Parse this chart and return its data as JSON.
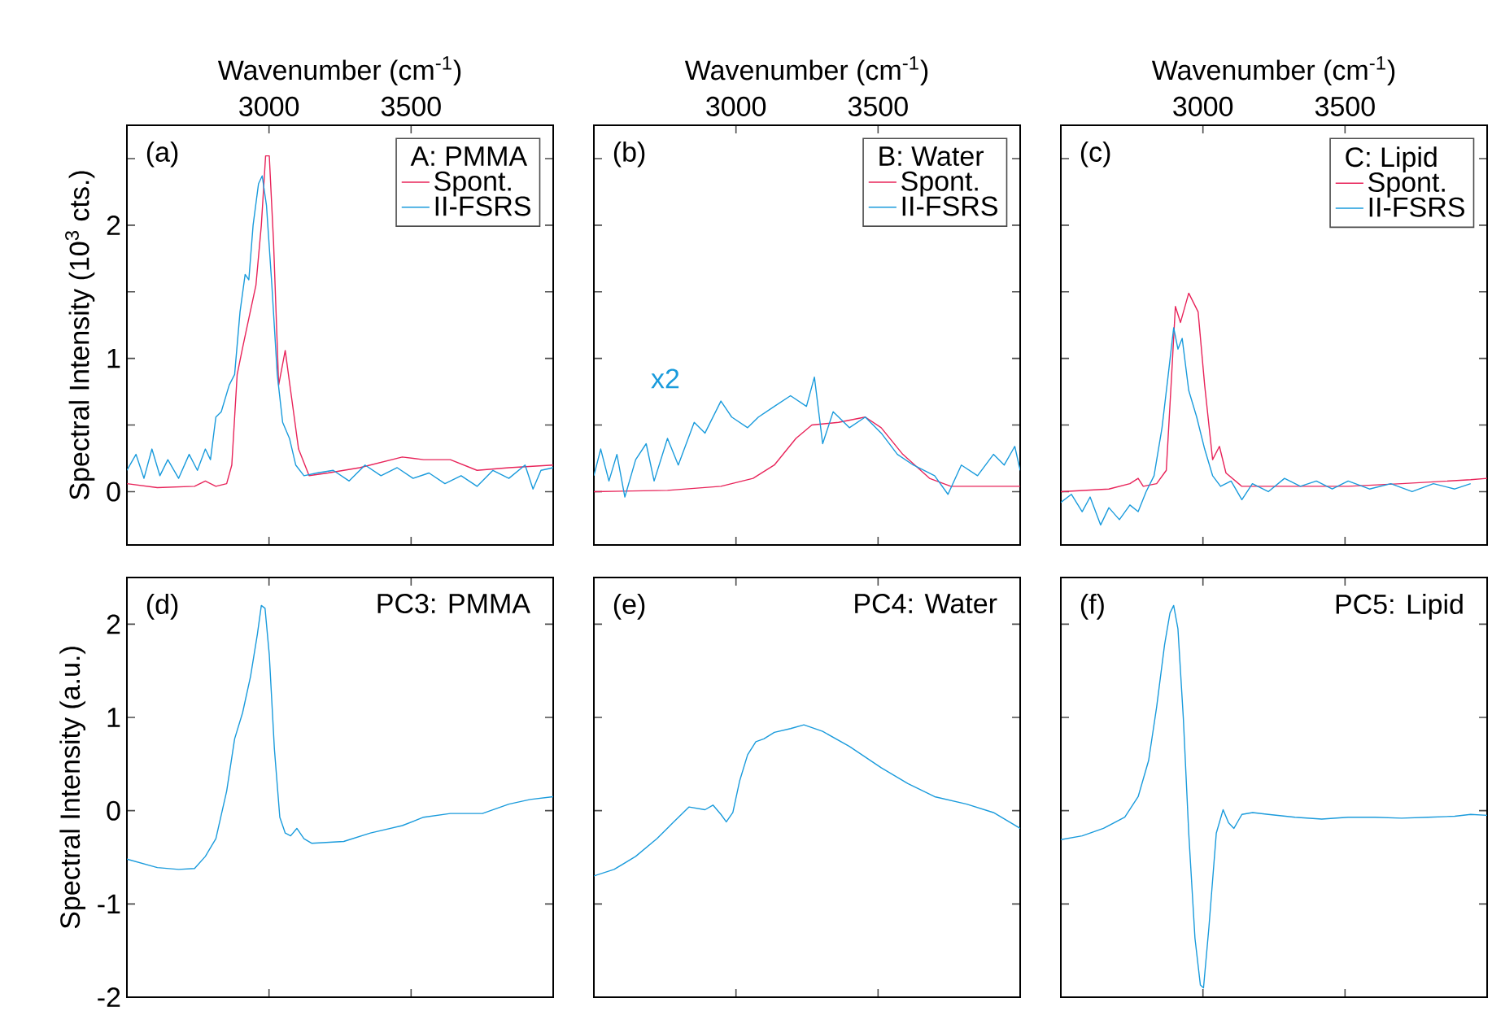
{
  "chart_data": [
    {
      "type": "line",
      "xlabel": "Wavenumber (cm$^{-1}$)",
      "ylabel": "Spectral Intensity (10$^{3}$ cts.)",
      "legend_title": "A: PMMA",
      "legend": "top right",
      "annotations": [
        "(a)"
      ],
      "xlim": [
        2500,
        4000
      ],
      "xticks": [
        3000,
        3500
      ],
      "ylim": [
        -0.4,
        2.75
      ],
      "yticks": [
        0,
        {
          "value": 0.5,
          "label": null
        },
        1,
        {
          "value": 1.5,
          "label": null
        },
        2,
        {
          "value": 2.5,
          "label": null
        }
      ],
      "series": [
        {
          "name": "Spont.",
          "color": "#e8245a",
          "x": [
            2500,
            2607,
            2738,
            2776,
            2813,
            2851,
            2869,
            2888,
            2907,
            2926,
            2954,
            2973,
            2988,
            3001,
            3016,
            3034,
            3057,
            3076,
            3104,
            3141,
            3207,
            3319,
            3469,
            3544,
            3638,
            3732,
            3844,
            4000
          ],
          "values": [
            0.06,
            0.03,
            0.04,
            0.08,
            0.04,
            0.06,
            0.2,
            0.88,
            1.08,
            1.27,
            1.55,
            2.0,
            2.52,
            2.52,
            1.87,
            0.8,
            1.06,
            0.76,
            0.32,
            0.12,
            0.14,
            0.18,
            0.26,
            0.24,
            0.24,
            0.16,
            0.18,
            0.2
          ]
        },
        {
          "name": "II-FSRS",
          "color": "#1a9bdc",
          "x": [
            2500,
            2532,
            2560,
            2588,
            2616,
            2644,
            2682,
            2719,
            2748,
            2776,
            2794,
            2813,
            2832,
            2860,
            2879,
            2898,
            2916,
            2929,
            2944,
            2963,
            2976,
            2991,
            3010,
            3029,
            3048,
            3072,
            3094,
            3123,
            3169,
            3226,
            3282,
            3338,
            3394,
            3451,
            3507,
            3563,
            3619,
            3676,
            3732,
            3788,
            3844,
            3901,
            3929,
            3957,
            4000
          ],
          "values": [
            0.16,
            0.28,
            0.1,
            0.32,
            0.12,
            0.24,
            0.1,
            0.28,
            0.16,
            0.32,
            0.24,
            0.56,
            0.6,
            0.8,
            0.88,
            1.35,
            1.63,
            1.59,
            2.0,
            2.31,
            2.37,
            2.15,
            1.55,
            0.88,
            0.52,
            0.4,
            0.2,
            0.12,
            0.14,
            0.16,
            0.08,
            0.2,
            0.12,
            0.18,
            0.1,
            0.14,
            0.06,
            0.12,
            0.04,
            0.16,
            0.1,
            0.2,
            0.02,
            0.16,
            0.18
          ]
        }
      ]
    },
    {
      "type": "line",
      "xlabel": "Wavenumber (cm$^{-1}$)",
      "legend_title": "B: Water",
      "legend": "top right",
      "annotations": [
        "(b)",
        "x2"
      ],
      "tick_labels": "x",
      "xlim": [
        2500,
        4000
      ],
      "xticks": [
        3000,
        3500
      ],
      "ylim": [
        -0.4,
        2.75
      ],
      "yticks": [
        0,
        {
          "value": 0.5,
          "label": null
        },
        1,
        {
          "value": 1.5,
          "label": null
        },
        2,
        {
          "value": 2.5,
          "label": null
        }
      ],
      "series": [
        {
          "name": "Spont.",
          "color": "#e8245a",
          "x": [
            2500,
            2759,
            2947,
            3060,
            3135,
            3211,
            3267,
            3361,
            3455,
            3511,
            3587,
            3681,
            3756,
            4000
          ],
          "values": [
            0,
            0.01,
            0.04,
            0.1,
            0.2,
            0.4,
            0.5,
            0.52,
            0.56,
            0.48,
            0.28,
            0.1,
            0.04,
            0.04
          ]
        },
        {
          "name": "II-FSRS",
          "color": "#1a9bdc",
          "x": [
            2500,
            2524,
            2553,
            2581,
            2609,
            2647,
            2684,
            2712,
            2759,
            2797,
            2853,
            2891,
            2947,
            2985,
            3041,
            3079,
            3135,
            3192,
            3248,
            3276,
            3305,
            3342,
            3399,
            3455,
            3511,
            3568,
            3624,
            3699,
            3746,
            3793,
            3850,
            3906,
            3944,
            3981,
            4000
          ],
          "values": [
            0.12,
            0.32,
            0.08,
            0.28,
            -0.04,
            0.24,
            0.36,
            0.08,
            0.4,
            0.2,
            0.52,
            0.44,
            0.68,
            0.56,
            0.48,
            0.56,
            0.64,
            0.72,
            0.64,
            0.86,
            0.36,
            0.6,
            0.48,
            0.56,
            0.44,
            0.28,
            0.2,
            0.12,
            -0.02,
            0.2,
            0.12,
            0.28,
            0.2,
            0.34,
            0.16
          ]
        }
      ]
    },
    {
      "type": "line",
      "xlabel": "Wavenumber (cm$^{-1}$)",
      "legend_title": "C: Lipid",
      "legend": "top right",
      "annotations": [
        "(c)"
      ],
      "tick_labels": "x",
      "xlim": [
        2500,
        4000
      ],
      "xticks": [
        3000,
        3500
      ],
      "ylim": [
        -0.4,
        2.75
      ],
      "yticks": [
        0,
        {
          "value": 0.5,
          "label": null
        },
        1,
        {
          "value": 1.5,
          "label": null
        },
        2,
        {
          "value": 2.5,
          "label": null
        }
      ],
      "series": [
        {
          "name": "Spont.",
          "color": "#e8245a",
          "x": [
            2500,
            2669,
            2743,
            2772,
            2790,
            2837,
            2871,
            2890,
            2903,
            2921,
            2950,
            2983,
            3006,
            3034,
            3058,
            3081,
            3137,
            3324,
            3511,
            3699,
            3942,
            4000
          ],
          "values": [
            0,
            0.02,
            0.06,
            0.1,
            0.04,
            0.06,
            0.16,
            0.88,
            1.39,
            1.27,
            1.49,
            1.35,
            0.8,
            0.24,
            0.34,
            0.14,
            0.04,
            0.04,
            0.04,
            0.06,
            0.09,
            0.1
          ]
        },
        {
          "name": "II-FSRS",
          "color": "#1a9bdc",
          "x": [
            2500,
            2537,
            2575,
            2603,
            2640,
            2669,
            2706,
            2743,
            2772,
            2800,
            2828,
            2856,
            2878,
            2897,
            2912,
            2927,
            2950,
            2978,
            3006,
            3034,
            3062,
            3099,
            3137,
            3174,
            3230,
            3287,
            3343,
            3399,
            3455,
            3511,
            3586,
            3661,
            3736,
            3811,
            3886,
            3942
          ],
          "values": [
            -0.08,
            -0.02,
            -0.15,
            -0.04,
            -0.25,
            -0.12,
            -0.21,
            -0.1,
            -0.15,
            0,
            0.12,
            0.48,
            0.88,
            1.23,
            1.07,
            1.15,
            0.76,
            0.56,
            0.32,
            0.12,
            0.04,
            0.08,
            -0.06,
            0.06,
            0,
            0.1,
            0.04,
            0.08,
            0.02,
            0.08,
            0.02,
            0.06,
            0,
            0.06,
            0.02,
            0.06
          ]
        }
      ]
    },
    {
      "type": "line",
      "ylabel": "Spectral Intensity (a.u.)",
      "annotations": [
        "(d)",
        "PC3: PMMA"
      ],
      "tick_labels": "y",
      "xlim": [
        2500,
        4000
      ],
      "xticks": [
        3000,
        3500
      ],
      "ylim": [
        -2,
        2.5
      ],
      "yticks": [
        -2,
        -1,
        0,
        1,
        2
      ],
      "series": [
        {
          "color": "#1a9bdc",
          "x": [
            2500,
            2607,
            2682,
            2738,
            2776,
            2813,
            2851,
            2879,
            2907,
            2935,
            2959,
            2973,
            2986,
            3001,
            3019,
            3038,
            3057,
            3076,
            3098,
            3123,
            3151,
            3263,
            3357,
            3469,
            3544,
            3638,
            3751,
            3844,
            3919,
            4000
          ],
          "values": [
            -0.52,
            -0.61,
            -0.63,
            -0.62,
            -0.49,
            -0.3,
            0.21,
            0.77,
            1.05,
            1.44,
            1.89,
            2.2,
            2.17,
            1.67,
            0.66,
            -0.07,
            -0.24,
            -0.27,
            -0.19,
            -0.3,
            -0.35,
            -0.33,
            -0.24,
            -0.16,
            -0.07,
            -0.03,
            -0.03,
            0.07,
            0.12,
            0.15
          ]
        }
      ]
    },
    {
      "type": "line",
      "annotations": [
        "(e)",
        "PC4: Water"
      ],
      "tick_labels": false,
      "xlim": [
        2500,
        4000
      ],
      "xticks": [
        3000,
        3500
      ],
      "ylim": [
        -2,
        2.5
      ],
      "yticks": [
        -2,
        -1,
        0,
        1,
        2
      ],
      "series": [
        {
          "color": "#1a9bdc",
          "x": [
            2500,
            2571,
            2647,
            2722,
            2778,
            2835,
            2891,
            2919,
            2947,
            2966,
            2989,
            3013,
            3041,
            3070,
            3098,
            3135,
            3192,
            3239,
            3305,
            3399,
            3511,
            3605,
            3699,
            3812,
            3906,
            4000
          ],
          "values": [
            -0.7,
            -0.63,
            -0.49,
            -0.3,
            -0.13,
            0.04,
            0.01,
            0.06,
            -0.04,
            -0.12,
            -0.02,
            0.32,
            0.6,
            0.74,
            0.77,
            0.84,
            0.88,
            0.92,
            0.85,
            0.69,
            0.46,
            0.29,
            0.15,
            0.07,
            -0.02,
            -0.19
          ]
        }
      ]
    },
    {
      "type": "line",
      "annotations": [
        "(f)",
        "PC5: Lipid"
      ],
      "tick_labels": false,
      "xlim": [
        2500,
        4000
      ],
      "xticks": [
        3000,
        3500
      ],
      "ylim": [
        -2,
        2.5
      ],
      "yticks": [
        -2,
        -1,
        0,
        1,
        2
      ],
      "series": [
        {
          "color": "#1a9bdc",
          "x": [
            2500,
            2575,
            2650,
            2725,
            2772,
            2809,
            2837,
            2865,
            2884,
            2897,
            2912,
            2931,
            2950,
            2972,
            2991,
            3002,
            3021,
            3047,
            3071,
            3090,
            3109,
            3137,
            3175,
            3230,
            3324,
            3418,
            3511,
            3605,
            3699,
            3792,
            3886,
            3942,
            4000
          ],
          "values": [
            -0.31,
            -0.27,
            -0.19,
            -0.07,
            0.15,
            0.54,
            1.11,
            1.78,
            2.12,
            2.2,
            1.95,
            0.99,
            -0.24,
            -1.37,
            -1.87,
            -1.9,
            -1.25,
            -0.24,
            0.01,
            -0.13,
            -0.19,
            -0.04,
            -0.02,
            -0.04,
            -0.07,
            -0.09,
            -0.07,
            -0.07,
            -0.08,
            -0.07,
            -0.06,
            -0.04,
            -0.05
          ]
        }
      ]
    }
  ]
}
